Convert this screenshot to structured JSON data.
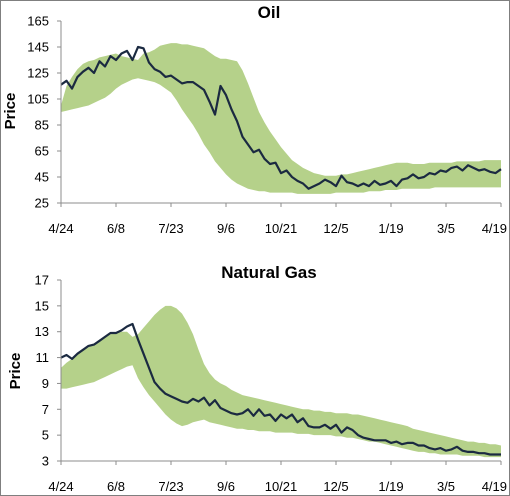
{
  "chart_data": [
    {
      "type": "line",
      "title": "Oil",
      "xlabel": "",
      "ylabel": "Price",
      "ylim": [
        25,
        165
      ],
      "yticks": [
        "25",
        "45",
        "65",
        "85",
        "105",
        "125",
        "145",
        "165"
      ],
      "xticks": [
        "4/24",
        "6/8",
        "7/23",
        "9/6",
        "10/21",
        "12/5",
        "1/19",
        "3/5",
        "4/19"
      ],
      "x": [
        0,
        2,
        4,
        6,
        8,
        10,
        12,
        14,
        16,
        18,
        20,
        22,
        24,
        26,
        28,
        30,
        32,
        34,
        36,
        38,
        40,
        42,
        44,
        46,
        48,
        50,
        52,
        54,
        56,
        58,
        60,
        62,
        64,
        66,
        68,
        70,
        72,
        74,
        76,
        78,
        80,
        82,
        84,
        86,
        88,
        90,
        92,
        94,
        96,
        98,
        100,
        102,
        104,
        106,
        108,
        110,
        112,
        114,
        116,
        118,
        120,
        122,
        124,
        126,
        128,
        130,
        132,
        134,
        136,
        138,
        140,
        142,
        144,
        146,
        148,
        150,
        152,
        154,
        156,
        158,
        160
      ],
      "series": [
        {
          "values": [
            116,
            119,
            113,
            122,
            126,
            129,
            125,
            134,
            130,
            138,
            135,
            140,
            142,
            135,
            145,
            144,
            133,
            128,
            126,
            122,
            123,
            120,
            117,
            118,
            118,
            115,
            112,
            103,
            93,
            115,
            108,
            97,
            88,
            76,
            70,
            64,
            66,
            59,
            55,
            56,
            48,
            50,
            45,
            42,
            40,
            36,
            38,
            40,
            43,
            41,
            38,
            46,
            41,
            40,
            38,
            40,
            38,
            42,
            39,
            40,
            42,
            38,
            43,
            44,
            47,
            44,
            45,
            48,
            47,
            50,
            49,
            52,
            53,
            50,
            54,
            52,
            50,
            51,
            49,
            48,
            51
          ]
        }
      ],
      "band": {
        "upper": [
          100,
          115,
          122,
          128,
          132,
          134,
          135,
          137,
          138,
          139,
          140,
          138,
          137,
          136,
          135,
          140,
          141,
          143,
          146,
          147,
          148,
          148,
          147,
          147,
          146,
          145,
          144,
          141,
          138,
          136,
          136,
          135,
          134,
          127,
          117,
          106,
          95,
          87,
          80,
          74,
          68,
          63,
          58,
          55,
          52,
          50,
          48,
          47,
          46,
          46,
          46,
          47,
          47,
          48,
          49,
          50,
          51,
          52,
          53,
          54,
          55,
          56,
          56,
          56,
          55,
          55,
          55,
          56,
          56,
          56,
          56,
          56,
          57,
          57,
          57,
          57,
          57,
          58,
          58,
          58,
          58
        ],
        "lower": [
          95,
          96,
          97,
          98,
          99,
          100,
          102,
          104,
          106,
          109,
          113,
          116,
          118,
          120,
          121,
          120,
          119,
          118,
          116,
          113,
          110,
          104,
          97,
          91,
          85,
          78,
          70,
          64,
          57,
          52,
          47,
          43,
          40,
          38,
          36,
          35,
          34,
          34,
          33,
          33,
          33,
          33,
          33,
          32,
          32,
          32,
          32,
          32,
          32,
          32,
          33,
          33,
          33,
          33,
          33,
          33,
          34,
          34,
          34,
          35,
          35,
          35,
          36,
          36,
          36,
          36,
          36,
          36,
          37,
          37,
          37,
          37,
          37,
          37,
          37,
          37,
          37,
          37,
          37,
          37,
          37
        ]
      }
    },
    {
      "type": "line",
      "title": "Natural Gas",
      "xlabel": "",
      "ylabel": "Price",
      "ylim": [
        3,
        17
      ],
      "yticks": [
        "3",
        "5",
        "7",
        "9",
        "11",
        "13",
        "15",
        "17"
      ],
      "xticks": [
        "4/24",
        "6/8",
        "7/23",
        "9/6",
        "10/21",
        "12/5",
        "1/19",
        "3/5",
        "4/19"
      ],
      "x": [
        0,
        2,
        4,
        6,
        8,
        10,
        12,
        14,
        16,
        18,
        20,
        22,
        24,
        26,
        28,
        30,
        32,
        34,
        36,
        38,
        40,
        42,
        44,
        46,
        48,
        50,
        52,
        54,
        56,
        58,
        60,
        62,
        64,
        66,
        68,
        70,
        72,
        74,
        76,
        78,
        80,
        82,
        84,
        86,
        88,
        90,
        92,
        94,
        96,
        98,
        100,
        102,
        104,
        106,
        108,
        110,
        112,
        114,
        116,
        118,
        120,
        122,
        124,
        126,
        128,
        130,
        132,
        134,
        136,
        138,
        140,
        142,
        144,
        146,
        148,
        150,
        152,
        154,
        156,
        158,
        160
      ],
      "series": [
        {
          "values": [
            11,
            11.2,
            10.9,
            11.3,
            11.6,
            11.9,
            12.0,
            12.3,
            12.6,
            12.9,
            12.9,
            13.1,
            13.4,
            13.6,
            12.4,
            11.3,
            10.2,
            9.1,
            8.6,
            8.2,
            8.0,
            7.8,
            7.6,
            7.5,
            7.8,
            7.6,
            7.9,
            7.3,
            7.7,
            7.1,
            6.9,
            6.7,
            6.6,
            6.7,
            7.0,
            6.5,
            7.0,
            6.5,
            6.6,
            6.1,
            6.6,
            6.3,
            6.6,
            6.0,
            6.3,
            5.7,
            5.6,
            5.6,
            5.8,
            5.5,
            5.8,
            5.2,
            5.6,
            5.4,
            5.0,
            4.8,
            4.7,
            4.6,
            4.6,
            4.6,
            4.4,
            4.5,
            4.3,
            4.4,
            4.4,
            4.2,
            4.2,
            4.0,
            3.9,
            4.0,
            3.8,
            3.9,
            4.1,
            3.8,
            3.7,
            3.7,
            3.6,
            3.6,
            3.5,
            3.5,
            3.5
          ]
        }
      ],
      "band": {
        "upper": [
          10.2,
          10.6,
          10.9,
          11.3,
          11.6,
          11.8,
          12.1,
          12.4,
          12.6,
          12.8,
          12.9,
          13.0,
          13.0,
          12.6,
          12.8,
          13.3,
          13.8,
          14.3,
          14.7,
          15.0,
          15.0,
          14.8,
          14.4,
          13.7,
          12.8,
          11.6,
          10.5,
          9.8,
          9.3,
          9.0,
          8.8,
          8.5,
          8.3,
          8.1,
          8.0,
          7.9,
          7.8,
          7.7,
          7.6,
          7.5,
          7.4,
          7.3,
          7.2,
          7.1,
          7.0,
          7.0,
          6.9,
          6.9,
          6.8,
          6.8,
          6.7,
          6.7,
          6.7,
          6.6,
          6.6,
          6.5,
          6.4,
          6.3,
          6.2,
          6.1,
          6.0,
          5.9,
          5.8,
          5.7,
          5.5,
          5.4,
          5.3,
          5.2,
          5.1,
          5.0,
          4.9,
          4.8,
          4.7,
          4.6,
          4.5,
          4.5,
          4.4,
          4.4,
          4.3,
          4.3,
          4.2
        ],
        "lower": [
          8.6,
          8.6,
          8.7,
          8.8,
          8.9,
          9.0,
          9.1,
          9.3,
          9.5,
          9.7,
          9.9,
          10.1,
          10.3,
          10.4,
          9.4,
          8.7,
          8.1,
          7.6,
          7.1,
          6.6,
          6.2,
          5.9,
          5.7,
          5.8,
          6.0,
          6.1,
          6.2,
          6.0,
          5.9,
          5.8,
          5.7,
          5.6,
          5.5,
          5.5,
          5.4,
          5.4,
          5.3,
          5.3,
          5.3,
          5.2,
          5.2,
          5.2,
          5.2,
          5.1,
          5.1,
          5.1,
          5.0,
          5.0,
          5.0,
          5.0,
          4.9,
          4.9,
          4.8,
          4.8,
          4.7,
          4.6,
          4.5,
          4.5,
          4.4,
          4.3,
          4.2,
          4.1,
          4.0,
          3.9,
          3.8,
          3.7,
          3.7,
          3.6,
          3.6,
          3.5,
          3.5,
          3.5,
          3.5,
          3.4,
          3.4,
          3.4,
          3.4,
          3.3,
          3.3,
          3.3,
          3.3
        ]
      }
    }
  ]
}
